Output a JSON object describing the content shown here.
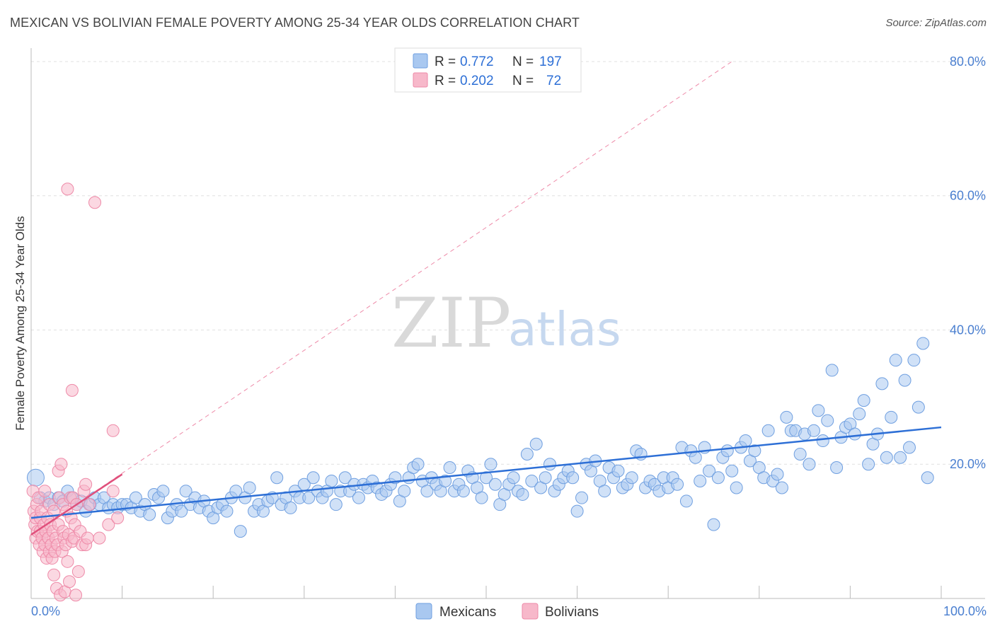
{
  "title": "MEXICAN VS BOLIVIAN FEMALE POVERTY AMONG 25-34 YEAR OLDS CORRELATION CHART",
  "source": "Source: ZipAtlas.com",
  "watermark": {
    "zip": "ZIP",
    "atlas": "atlas"
  },
  "colors": {
    "mexicans_fill": "#a9c8f0",
    "mexicans_stroke": "#6f9fe0",
    "mexicans_line": "#2d6fd6",
    "bolivians_fill": "#f7b8ca",
    "bolivians_stroke": "#ee8aa8",
    "bolivians_line": "#e0507c",
    "grid": "#e0e0e0",
    "tick_text": "#4a7fd0"
  },
  "legend": {
    "rows": [
      {
        "r_label": "R =",
        "r_value": "0.772",
        "n_label": "N =",
        "n_value": "197"
      },
      {
        "r_label": "R =",
        "r_value": "0.202",
        "n_label": "N =",
        "n_value": "72"
      }
    ]
  },
  "bottom_legend": [
    "Mexicans",
    "Bolivians"
  ],
  "chart_data": {
    "type": "scatter",
    "title": "MEXICAN VS BOLIVIAN FEMALE POVERTY AMONG 25-34 YEAR OLDS CORRELATION CHART",
    "xlabel": "",
    "ylabel": "Female Poverty Among 25-34 Year Olds",
    "xlim": [
      0,
      100
    ],
    "ylim": [
      0,
      82
    ],
    "x_ticks": [
      "0.0%",
      "100.0%"
    ],
    "y_ticks": [
      {
        "value": 20,
        "label": "20.0%"
      },
      {
        "value": 40,
        "label": "40.0%"
      },
      {
        "value": 60,
        "label": "60.0%"
      },
      {
        "value": 80,
        "label": "80.0%"
      }
    ],
    "grid": true,
    "legend_position": "top-center",
    "series": [
      {
        "name": "Mexicans",
        "r": 0.772,
        "n": 197,
        "trend": {
          "x": [
            0,
            100
          ],
          "y": [
            12.0,
            25.5
          ]
        },
        "points": [
          [
            0.5,
            18
          ],
          [
            1,
            15
          ],
          [
            1.5,
            14.5
          ],
          [
            2,
            15
          ],
          [
            2.5,
            14
          ],
          [
            3,
            15
          ],
          [
            3.5,
            14.5
          ],
          [
            4,
            16
          ],
          [
            4.5,
            15
          ],
          [
            5,
            14
          ],
          [
            5.5,
            14.5
          ],
          [
            6,
            13
          ],
          [
            6.5,
            14
          ],
          [
            7,
            15
          ],
          [
            7.5,
            14
          ],
          [
            8,
            15
          ],
          [
            8.5,
            13.5
          ],
          [
            9,
            14
          ],
          [
            9.5,
            13.5
          ],
          [
            10,
            14
          ],
          [
            10.5,
            14
          ],
          [
            11,
            13.5
          ],
          [
            11.5,
            15
          ],
          [
            12,
            13
          ],
          [
            12.5,
            14
          ],
          [
            13,
            12.5
          ],
          [
            13.5,
            15.5
          ],
          [
            14,
            15
          ],
          [
            14.5,
            16
          ],
          [
            15,
            12
          ],
          [
            15.5,
            13
          ],
          [
            16,
            14
          ],
          [
            16.5,
            13
          ],
          [
            17,
            16
          ],
          [
            17.5,
            14
          ],
          [
            18,
            15
          ],
          [
            18.5,
            13.5
          ],
          [
            19,
            14.5
          ],
          [
            19.5,
            13
          ],
          [
            20,
            12
          ],
          [
            20.5,
            13.5
          ],
          [
            21,
            14
          ],
          [
            21.5,
            13
          ],
          [
            22,
            15
          ],
          [
            22.5,
            16
          ],
          [
            23,
            10
          ],
          [
            23.5,
            15
          ],
          [
            24,
            16.5
          ],
          [
            24.5,
            13
          ],
          [
            25,
            14
          ],
          [
            25.5,
            13
          ],
          [
            26,
            14.5
          ],
          [
            26.5,
            15
          ],
          [
            27,
            18
          ],
          [
            27.5,
            14
          ],
          [
            28,
            15
          ],
          [
            28.5,
            13.5
          ],
          [
            29,
            16
          ],
          [
            29.5,
            15
          ],
          [
            30,
            17
          ],
          [
            30.5,
            15
          ],
          [
            31,
            18
          ],
          [
            31.5,
            16
          ],
          [
            32,
            15
          ],
          [
            32.5,
            16
          ],
          [
            33,
            17.5
          ],
          [
            33.5,
            14
          ],
          [
            34,
            16
          ],
          [
            34.5,
            18
          ],
          [
            35,
            16
          ],
          [
            35.5,
            17
          ],
          [
            36,
            15
          ],
          [
            36.5,
            17
          ],
          [
            37,
            16.5
          ],
          [
            37.5,
            17.5
          ],
          [
            38,
            16.5
          ],
          [
            38.5,
            15.5
          ],
          [
            39,
            16
          ],
          [
            39.5,
            17
          ],
          [
            40,
            18
          ],
          [
            40.5,
            14.5
          ],
          [
            41,
            16
          ],
          [
            41.5,
            18
          ],
          [
            42,
            19.5
          ],
          [
            42.5,
            20
          ],
          [
            43,
            17.5
          ],
          [
            43.5,
            16
          ],
          [
            44,
            18
          ],
          [
            44.5,
            17
          ],
          [
            45,
            16
          ],
          [
            45.5,
            17.5
          ],
          [
            46,
            19.5
          ],
          [
            46.5,
            16
          ],
          [
            47,
            17
          ],
          [
            47.5,
            16
          ],
          [
            48,
            19
          ],
          [
            48.5,
            18
          ],
          [
            49,
            16.5
          ],
          [
            49.5,
            15
          ],
          [
            50,
            18
          ],
          [
            50.5,
            20
          ],
          [
            51,
            17
          ],
          [
            51.5,
            14
          ],
          [
            52,
            15.5
          ],
          [
            52.5,
            17
          ],
          [
            53,
            18
          ],
          [
            53.5,
            16
          ],
          [
            54,
            15.5
          ],
          [
            54.5,
            21.5
          ],
          [
            55,
            17.5
          ],
          [
            55.5,
            23
          ],
          [
            56,
            16.5
          ],
          [
            56.5,
            18
          ],
          [
            57,
            20
          ],
          [
            57.5,
            16
          ],
          [
            58,
            17
          ],
          [
            58.5,
            18
          ],
          [
            59,
            19
          ],
          [
            59.5,
            18
          ],
          [
            60,
            13
          ],
          [
            60.5,
            15
          ],
          [
            61,
            20
          ],
          [
            61.5,
            19
          ],
          [
            62,
            20.5
          ],
          [
            62.5,
            17.5
          ],
          [
            63,
            16
          ],
          [
            63.5,
            19.5
          ],
          [
            64,
            18
          ],
          [
            64.5,
            19
          ],
          [
            65,
            16.5
          ],
          [
            65.5,
            17
          ],
          [
            66,
            18
          ],
          [
            66.5,
            22
          ],
          [
            67,
            21.5
          ],
          [
            67.5,
            16.5
          ],
          [
            68,
            17.5
          ],
          [
            68.5,
            17
          ],
          [
            69,
            16
          ],
          [
            69.5,
            18
          ],
          [
            70,
            16.5
          ],
          [
            70.5,
            18
          ],
          [
            71,
            17
          ],
          [
            71.5,
            22.5
          ],
          [
            72,
            14.5
          ],
          [
            72.5,
            22
          ],
          [
            73,
            21
          ],
          [
            73.5,
            17.5
          ],
          [
            74,
            22.5
          ],
          [
            74.5,
            19
          ],
          [
            75,
            11
          ],
          [
            75.5,
            18
          ],
          [
            76,
            21
          ],
          [
            76.5,
            22
          ],
          [
            77,
            19
          ],
          [
            77.5,
            16.5
          ],
          [
            78,
            22.5
          ],
          [
            78.5,
            23.5
          ],
          [
            79,
            20.5
          ],
          [
            79.5,
            22
          ],
          [
            80,
            19.5
          ],
          [
            80.5,
            18
          ],
          [
            81,
            25
          ],
          [
            81.5,
            17.5
          ],
          [
            82,
            18.5
          ],
          [
            82.5,
            16.5
          ],
          [
            83,
            27
          ],
          [
            83.5,
            25
          ],
          [
            84,
            25
          ],
          [
            84.5,
            21.5
          ],
          [
            85,
            24.5
          ],
          [
            85.5,
            20
          ],
          [
            86,
            25
          ],
          [
            86.5,
            28
          ],
          [
            87,
            23.5
          ],
          [
            87.5,
            26.5
          ],
          [
            88,
            34
          ],
          [
            88.5,
            19.5
          ],
          [
            89,
            24
          ],
          [
            89.5,
            25.5
          ],
          [
            90,
            26
          ],
          [
            90.5,
            24.5
          ],
          [
            91,
            27.5
          ],
          [
            91.5,
            29.5
          ],
          [
            92,
            20
          ],
          [
            92.5,
            23
          ],
          [
            93,
            24.5
          ],
          [
            93.5,
            32
          ],
          [
            94,
            21
          ],
          [
            94.5,
            27
          ],
          [
            95,
            35.5
          ],
          [
            95.5,
            21
          ],
          [
            96,
            32.5
          ],
          [
            96.5,
            22.5
          ],
          [
            97,
            35.5
          ],
          [
            97.5,
            28.5
          ],
          [
            98,
            38
          ],
          [
            98.5,
            18
          ]
        ]
      },
      {
        "name": "Bolivians",
        "r": 0.202,
        "n": 72,
        "trend": {
          "x": [
            0,
            10
          ],
          "y": [
            9.5,
            18.5
          ]
        },
        "reference_line": {
          "x": [
            0,
            77
          ],
          "y": [
            9.5,
            80
          ]
        },
        "points": [
          [
            0.2,
            16
          ],
          [
            0.3,
            13
          ],
          [
            0.4,
            11
          ],
          [
            0.5,
            12
          ],
          [
            0.5,
            9
          ],
          [
            0.6,
            14
          ],
          [
            0.7,
            10
          ],
          [
            0.8,
            15
          ],
          [
            0.9,
            8
          ],
          [
            1,
            12
          ],
          [
            1,
            10
          ],
          [
            1.1,
            13
          ],
          [
            1.2,
            9
          ],
          [
            1.3,
            7
          ],
          [
            1.4,
            11
          ],
          [
            1.5,
            8
          ],
          [
            1.5,
            16
          ],
          [
            1.6,
            10
          ],
          [
            1.7,
            6
          ],
          [
            1.8,
            12
          ],
          [
            1.9,
            9
          ],
          [
            2,
            7
          ],
          [
            2,
            14
          ],
          [
            2.1,
            11
          ],
          [
            2.2,
            8
          ],
          [
            2.3,
            6
          ],
          [
            2.4,
            10
          ],
          [
            2.5,
            13
          ],
          [
            2.5,
            3.5
          ],
          [
            2.6,
            7
          ],
          [
            2.7,
            9
          ],
          [
            2.8,
            1.5
          ],
          [
            2.9,
            8
          ],
          [
            3,
            11
          ],
          [
            3,
            19
          ],
          [
            3.1,
            15
          ],
          [
            3.2,
            0.5
          ],
          [
            3.3,
            20
          ],
          [
            3.4,
            7
          ],
          [
            3.5,
            10
          ],
          [
            3.5,
            14
          ],
          [
            3.6,
            9
          ],
          [
            3.7,
            1
          ],
          [
            3.8,
            8
          ],
          [
            3.9,
            13
          ],
          [
            4,
            61
          ],
          [
            4,
            5.5
          ],
          [
            4.1,
            9.5
          ],
          [
            4.2,
            2.5
          ],
          [
            4.3,
            15
          ],
          [
            4.4,
            12
          ],
          [
            4.5,
            31
          ],
          [
            4.5,
            8.5
          ],
          [
            4.6,
            15
          ],
          [
            4.7,
            9
          ],
          [
            4.8,
            11
          ],
          [
            4.9,
            0.5
          ],
          [
            5,
            14
          ],
          [
            5.2,
            4
          ],
          [
            5.4,
            10
          ],
          [
            5.6,
            8
          ],
          [
            5.8,
            16
          ],
          [
            6,
            8
          ],
          [
            6,
            17
          ],
          [
            6.2,
            9
          ],
          [
            6.4,
            14
          ],
          [
            7,
            59
          ],
          [
            7.5,
            9
          ],
          [
            8.5,
            11
          ],
          [
            9,
            25
          ],
          [
            9,
            16
          ],
          [
            9.5,
            12
          ]
        ]
      }
    ]
  }
}
